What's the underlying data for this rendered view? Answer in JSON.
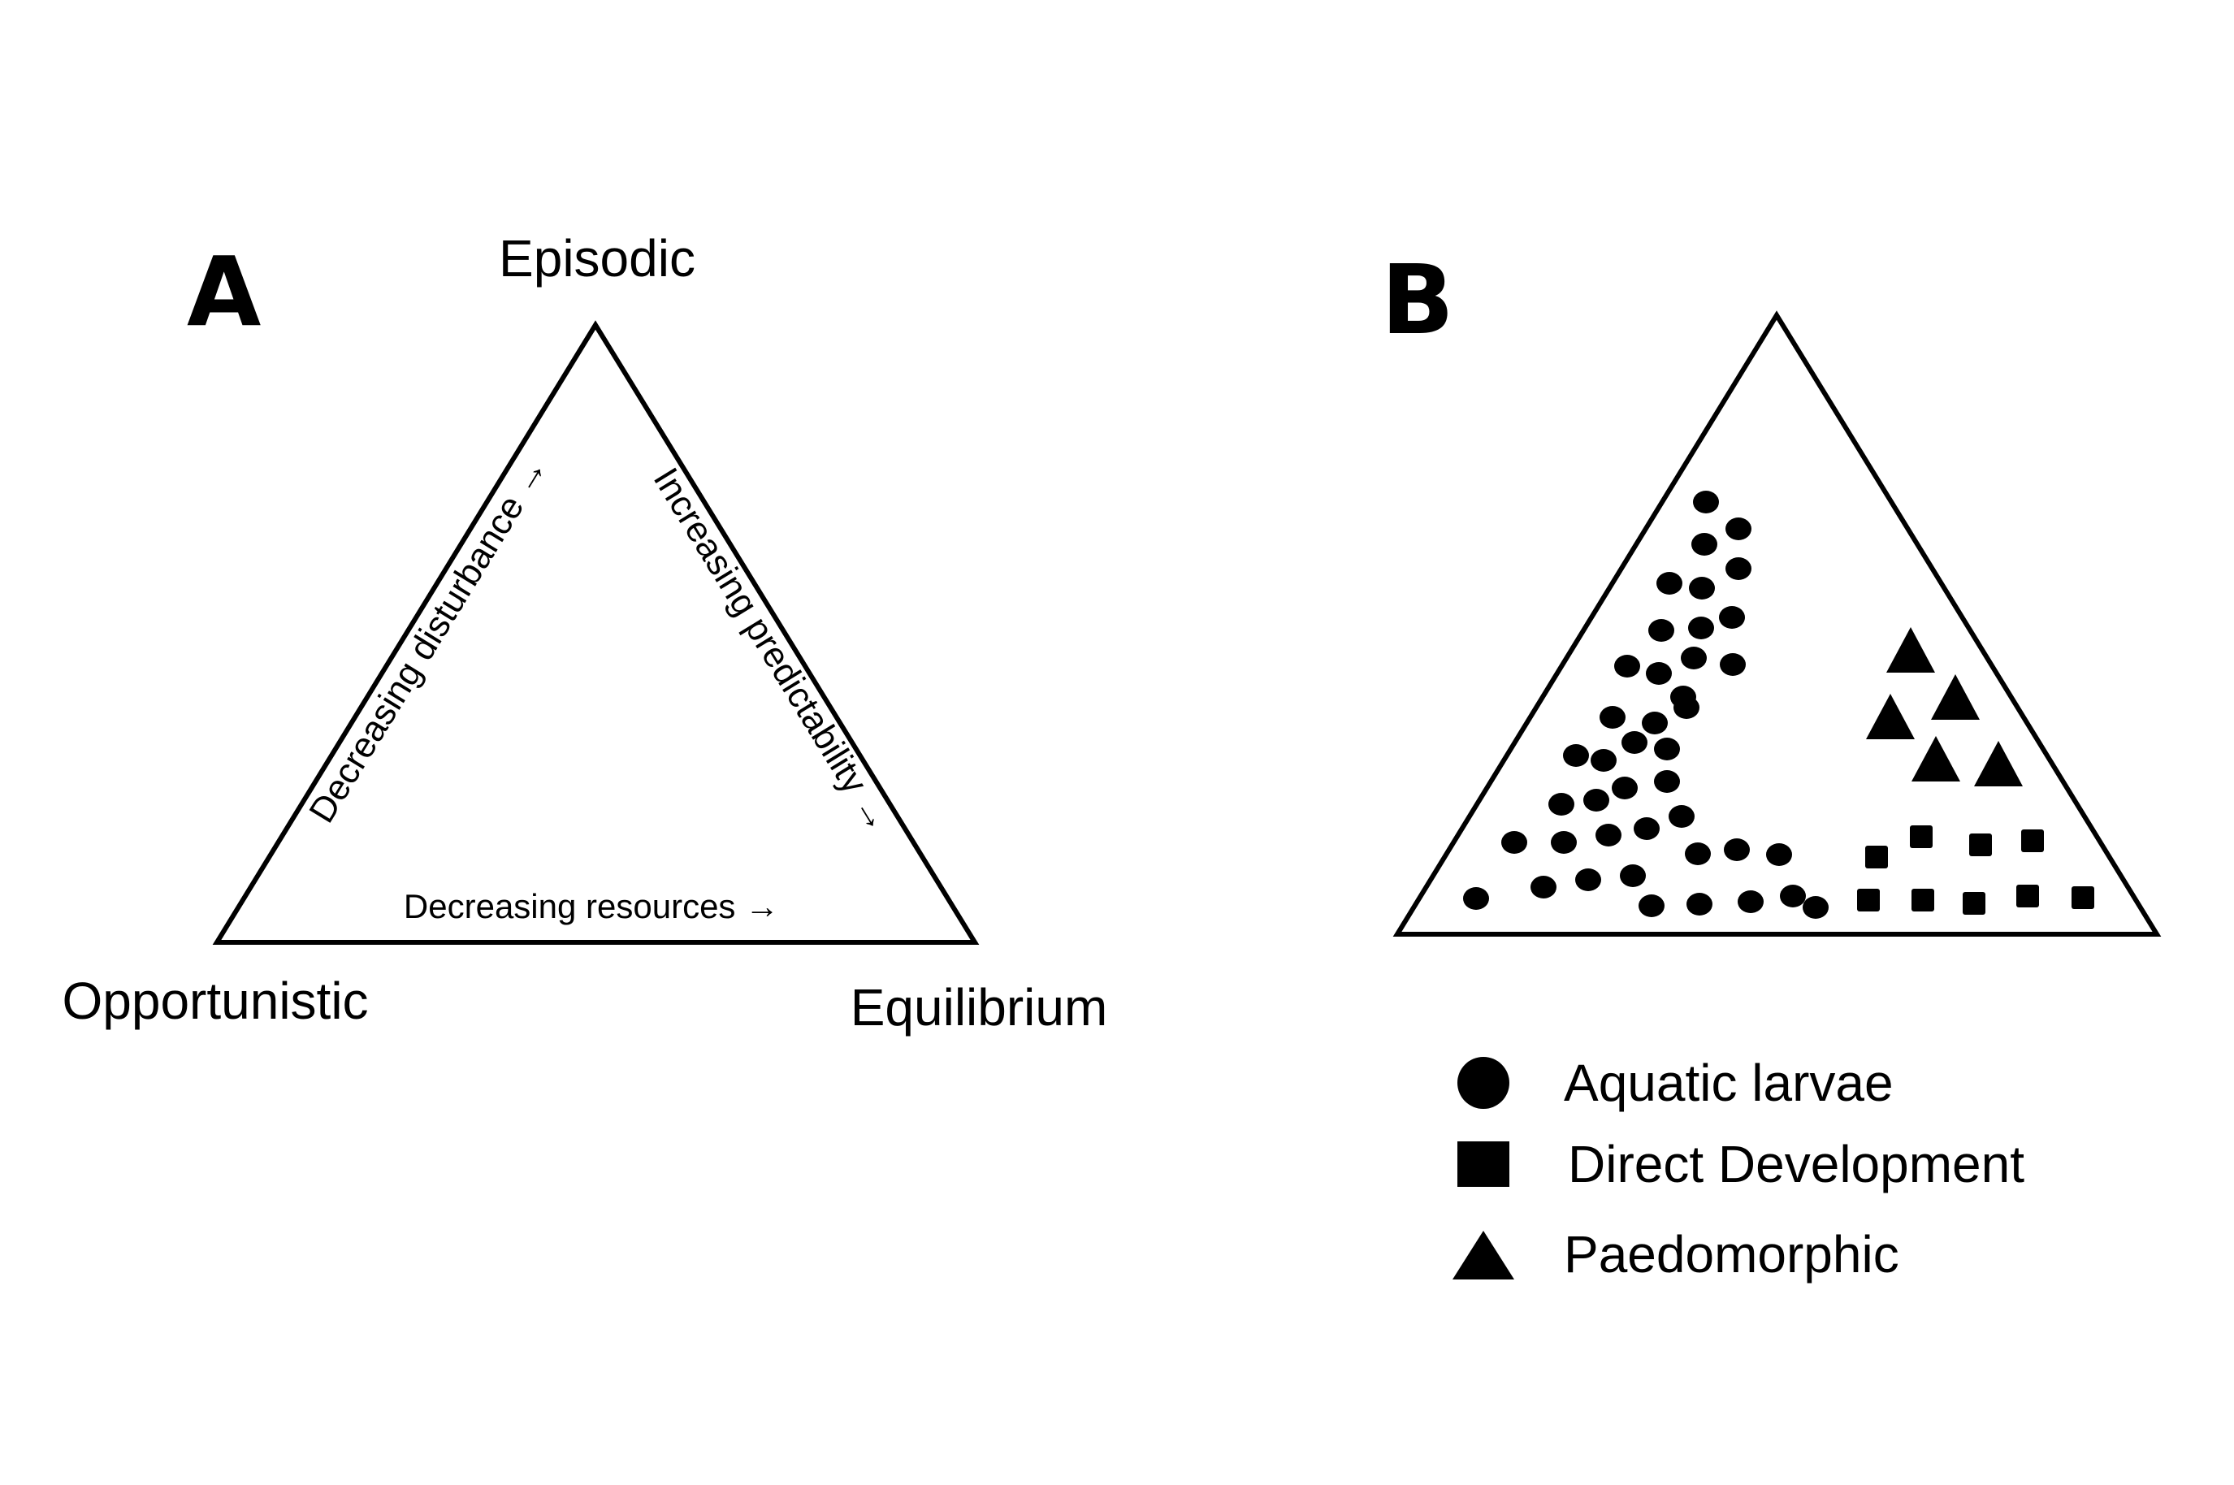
{
  "panel_a": {
    "letter": "A",
    "vertex_top": "Episodic",
    "vertex_left": "Opportunistic",
    "vertex_right": "Equilibrium",
    "axis_left": "Decreasing disturbance →",
    "axis_right": "Increasing predictability →",
    "axis_bottom": "Decreasing resources →"
  },
  "panel_b": {
    "letter": "B",
    "legend": [
      {
        "label": "Aquatic larvae",
        "marker": "circle"
      },
      {
        "label": "Direct Development",
        "marker": "square"
      },
      {
        "label": "Paedomorphic",
        "marker": "triangle"
      }
    ]
  },
  "colors": {
    "ink": "#000000",
    "background": "#ffffff"
  }
}
